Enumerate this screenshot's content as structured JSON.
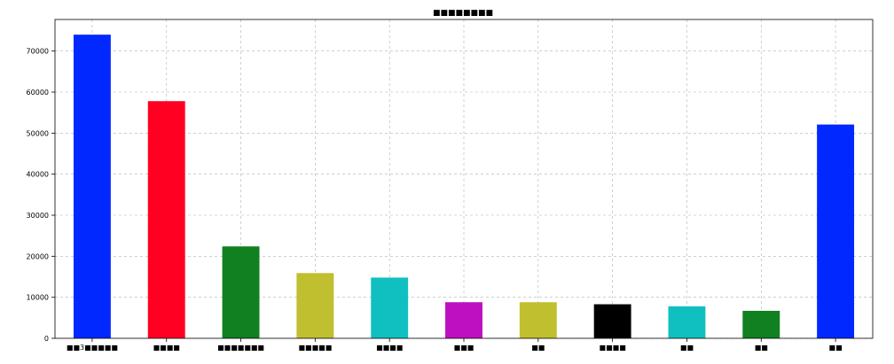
{
  "chart_data": {
    "type": "bar",
    "title": "■■■■■■■■",
    "xlabel": "",
    "ylabel": "",
    "categories": [
      "■■3■■■■■",
      "■■■■",
      "■■■■■■■",
      "■■■■■",
      "■■■■",
      "■■■",
      "■■",
      "■■■■",
      "■■",
      "■■",
      "■■"
    ],
    "values": [
      74000,
      57800,
      22400,
      15900,
      14800,
      8800,
      8800,
      8300,
      7800,
      6700,
      52100
    ],
    "colors": [
      "#0028ff",
      "#ff0022",
      "#108020",
      "#bfbf30",
      "#10c0c0",
      "#bf10bf",
      "#bfbf30",
      "#000000",
      "#10c0c0",
      "#108020",
      "#0028ff"
    ],
    "ylim": [
      0,
      77700
    ],
    "yticks": [
      0,
      10000,
      20000,
      30000,
      40000,
      50000,
      60000,
      70000
    ],
    "grid": true,
    "grid_style": "dashed",
    "legend": "none"
  }
}
